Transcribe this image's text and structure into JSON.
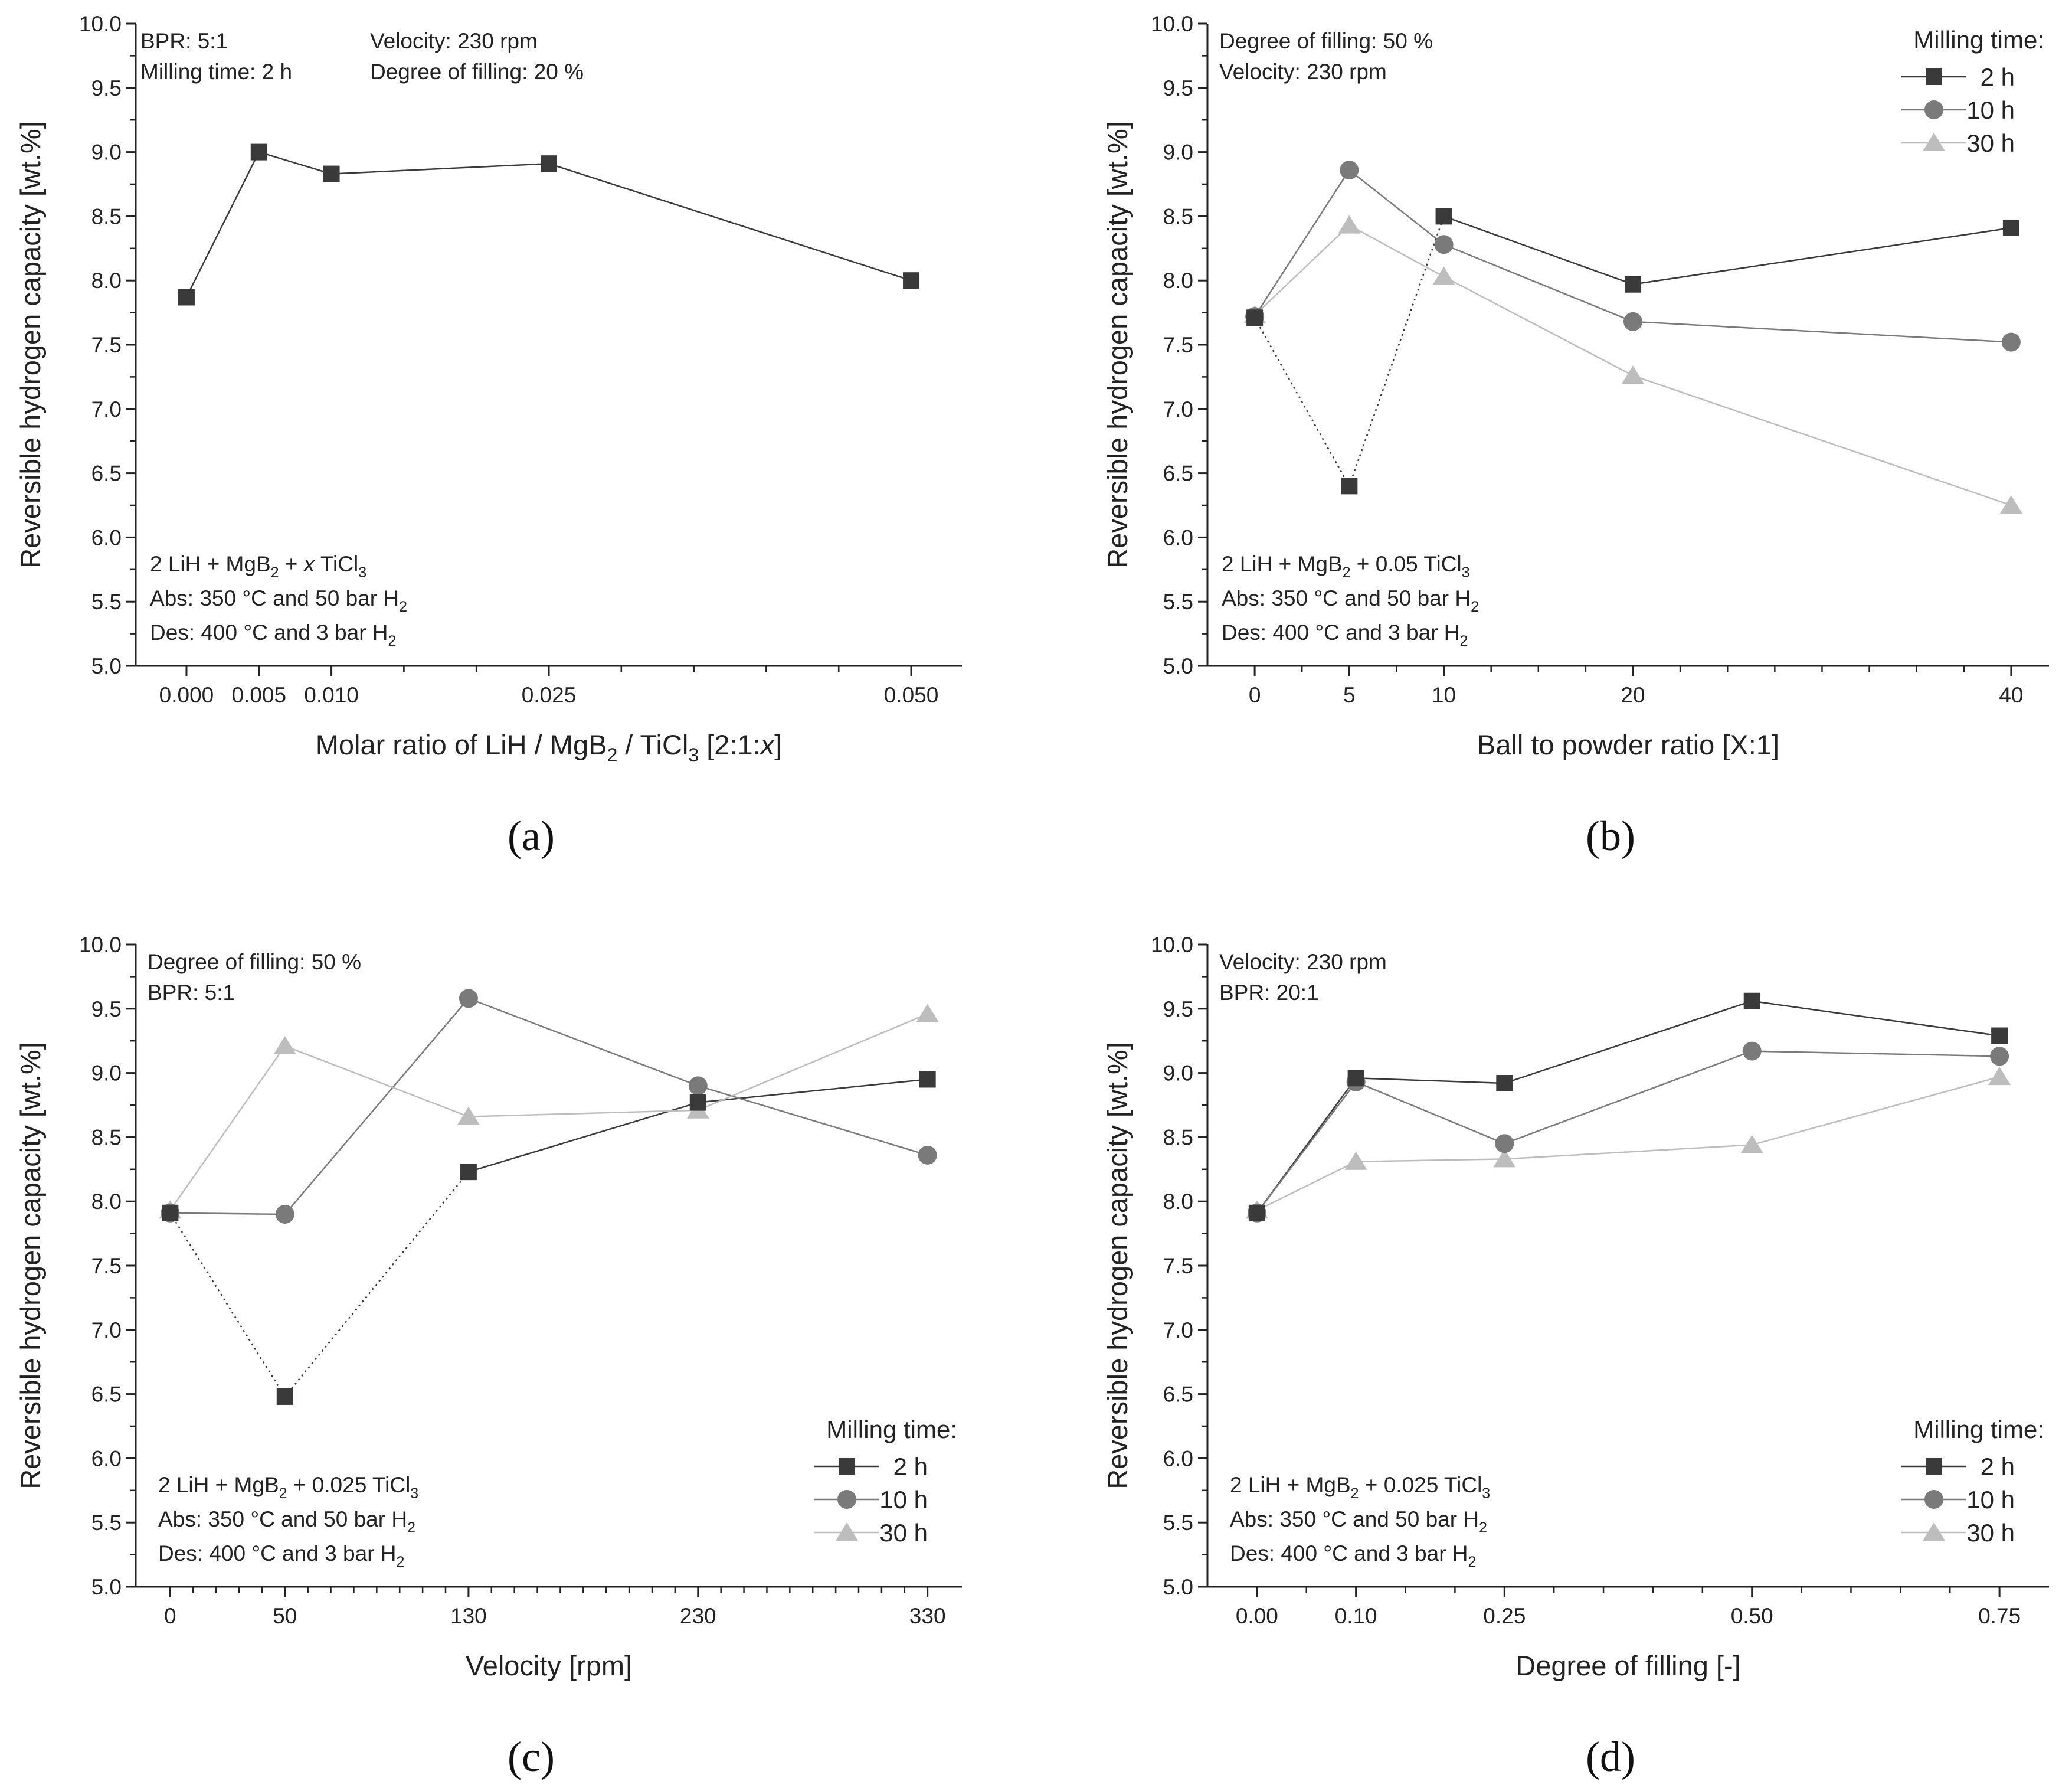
{
  "chart_data": [
    {
      "panel_label": "(a)",
      "type": "line",
      "xlabel_parts": [
        "Molar ratio of LiH / MgB",
        "2",
        " / TiCl",
        "3",
        " [2:1:",
        "x",
        "]"
      ],
      "ylabel": "Reversible hydrogen capacity [wt.%]",
      "xlim": [
        -0.0035,
        0.0535
      ],
      "ylim": [
        5.0,
        10.0
      ],
      "x_ticks": [
        0.0,
        0.005,
        0.01,
        0.025,
        0.05
      ],
      "x_tick_labels": [
        "0.000",
        "0.005",
        "0.010",
        "0.025",
        "0.050"
      ],
      "x_minor_ticks": [
        0.0,
        0.005,
        0.01,
        0.015,
        0.02,
        0.025,
        0.03,
        0.035,
        0.04,
        0.045,
        0.05
      ],
      "y_ticks": [
        5.0,
        5.5,
        6.0,
        6.5,
        7.0,
        7.5,
        8.0,
        8.5,
        9.0,
        9.5,
        10.0
      ],
      "y_tick_labels": [
        "5.0",
        "5.5",
        "6.0",
        "6.5",
        "7.0",
        "7.5",
        "8.0",
        "8.5",
        "9.0",
        "9.5",
        "10.0"
      ],
      "series": [
        {
          "name": "2 h",
          "marker": "square",
          "color": "#3a3a3a",
          "x": [
            0.0,
            0.005,
            0.01,
            0.025,
            0.05
          ],
          "values": [
            7.87,
            9.0,
            8.83,
            8.91,
            8.0
          ],
          "dotted_segments": []
        }
      ],
      "annotations_top": [
        [
          "BPR: 5:1"
        ],
        [
          "Milling time: 2 h"
        ],
        [
          "Velocity: 230 rpm"
        ],
        [
          "Degree of filling: 20 %"
        ]
      ],
      "annotations_bottom": [
        [
          "2 LiH + MgB",
          "2",
          " + ",
          "x",
          " TiCl",
          "3"
        ],
        [
          "Abs: 350 °C and 50 bar H",
          "2"
        ],
        [
          "Des: 400 °C and 3 bar H",
          "2"
        ]
      ],
      "legend": null
    },
    {
      "panel_label": "(b)",
      "type": "line",
      "xlabel_parts": [
        "Ball to powder ratio [X:1]"
      ],
      "ylabel": "Reversible hydrogen capacity [wt.%]",
      "xlim": [
        -2.5,
        42.0
      ],
      "ylim": [
        5.0,
        10.0
      ],
      "x_ticks": [
        0,
        5,
        10,
        20,
        40
      ],
      "x_tick_labels": [
        "0",
        "5",
        "10",
        "20",
        "40"
      ],
      "x_minor_ticks": [
        0,
        2.5,
        5,
        7.5,
        10,
        12.5,
        15,
        17.5,
        20,
        22.5,
        25,
        27.5,
        30,
        32.5,
        35,
        37.5,
        40
      ],
      "y_ticks": [
        5.0,
        5.5,
        6.0,
        6.5,
        7.0,
        7.5,
        8.0,
        8.5,
        9.0,
        9.5,
        10.0
      ],
      "y_tick_labels": [
        "5.0",
        "5.5",
        "6.0",
        "6.5",
        "7.0",
        "7.5",
        "8.0",
        "8.5",
        "9.0",
        "9.5",
        "10.0"
      ],
      "series": [
        {
          "name": "2 h",
          "marker": "square",
          "color": "#3a3a3a",
          "x": [
            0,
            5,
            10,
            20,
            40
          ],
          "values": [
            7.71,
            6.4,
            8.5,
            7.97,
            8.41
          ],
          "dotted_segments": [
            0,
            1
          ]
        },
        {
          "name": "10 h",
          "marker": "circle",
          "color": "#7a7a7a",
          "x": [
            0,
            5,
            10,
            20,
            40
          ],
          "values": [
            7.72,
            8.86,
            8.28,
            7.68,
            7.52
          ],
          "dotted_segments": []
        },
        {
          "name": "30 h",
          "marker": "triangle",
          "color": "#bdbdbd",
          "x": [
            0,
            5,
            10,
            20,
            40
          ],
          "values": [
            7.73,
            8.43,
            8.03,
            7.26,
            6.25
          ],
          "dotted_segments": []
        }
      ],
      "annotations_top": [
        [
          "Degree of filling: 50 %"
        ],
        [
          "Velocity: 230 rpm"
        ]
      ],
      "annotations_bottom": [
        [
          "2 LiH + MgB",
          "2",
          " + 0.05 TiCl",
          "3"
        ],
        [
          "Abs: 350 °C and 50 bar H",
          "2"
        ],
        [
          "Des: 400 °C and 3 bar H",
          "2"
        ]
      ],
      "legend": {
        "title": "Milling time:",
        "position": "top-right"
      }
    },
    {
      "panel_label": "(c)",
      "type": "line",
      "xlabel_parts": [
        "Velocity [rpm]"
      ],
      "ylabel": "Reversible hydrogen capacity [wt.%]",
      "xlim": [
        -15,
        345
      ],
      "ylim": [
        5.0,
        10.0
      ],
      "x_ticks": [
        0,
        50,
        130,
        230,
        330
      ],
      "x_tick_labels": [
        "0",
        "50",
        "130",
        "230",
        "330"
      ],
      "x_minor_ticks": [
        0,
        10,
        20,
        30,
        40,
        50,
        60,
        70,
        80,
        90,
        100,
        110,
        120,
        130,
        140,
        150,
        160,
        170,
        180,
        190,
        200,
        210,
        220,
        230,
        240,
        250,
        260,
        270,
        280,
        290,
        300,
        310,
        320,
        330
      ],
      "y_ticks": [
        5.0,
        5.5,
        6.0,
        6.5,
        7.0,
        7.5,
        8.0,
        8.5,
        9.0,
        9.5,
        10.0
      ],
      "y_tick_labels": [
        "5.0",
        "5.5",
        "6.0",
        "6.5",
        "7.0",
        "7.5",
        "8.0",
        "8.5",
        "9.0",
        "9.5",
        "10.0"
      ],
      "series": [
        {
          "name": "2 h",
          "marker": "square",
          "color": "#3a3a3a",
          "x": [
            0,
            50,
            130,
            230,
            330
          ],
          "values": [
            7.91,
            6.48,
            8.23,
            8.77,
            8.95
          ],
          "dotted_segments": [
            0,
            1
          ]
        },
        {
          "name": "10 h",
          "marker": "circle",
          "color": "#7a7a7a",
          "x": [
            0,
            50,
            130,
            230,
            330
          ],
          "values": [
            7.91,
            7.9,
            9.58,
            8.9,
            8.36
          ],
          "dotted_segments": []
        },
        {
          "name": "30 h",
          "marker": "triangle",
          "color": "#bdbdbd",
          "x": [
            0,
            50,
            130,
            230,
            330
          ],
          "values": [
            7.93,
            9.21,
            8.66,
            8.71,
            9.46
          ],
          "dotted_segments": []
        }
      ],
      "annotations_top": [
        [
          "Degree of filling: 50 %"
        ],
        [
          "BPR: 5:1"
        ]
      ],
      "annotations_bottom": [
        [
          "2 LiH + MgB",
          "2",
          " + 0.025 TiCl",
          "3"
        ],
        [
          "Abs: 350 °C and 50 bar H",
          "2"
        ],
        [
          "Des: 400 °C and 3 bar H",
          "2"
        ]
      ],
      "legend": {
        "title": "Milling time:",
        "position": "bottom-right"
      }
    },
    {
      "panel_label": "(d)",
      "type": "line",
      "xlabel_parts": [
        "Degree of filling [-]"
      ],
      "ylabel": "Reversible hydrogen capacity [wt.%]",
      "xlim": [
        -0.05,
        0.8
      ],
      "ylim": [
        5.0,
        10.0
      ],
      "x_ticks": [
        0.0,
        0.1,
        0.25,
        0.5,
        0.75
      ],
      "x_tick_labels": [
        "0.00",
        "0.10",
        "0.25",
        "0.50",
        "0.75"
      ],
      "x_minor_ticks": [
        0.0,
        0.05,
        0.1,
        0.15,
        0.2,
        0.25,
        0.3,
        0.35,
        0.4,
        0.45,
        0.5,
        0.55,
        0.6,
        0.65,
        0.7,
        0.75
      ],
      "y_ticks": [
        5.0,
        5.5,
        6.0,
        6.5,
        7.0,
        7.5,
        8.0,
        8.5,
        9.0,
        9.5,
        10.0
      ],
      "y_tick_labels": [
        "5.0",
        "5.5",
        "6.0",
        "6.5",
        "7.0",
        "7.5",
        "8.0",
        "8.5",
        "9.0",
        "9.5",
        "10.0"
      ],
      "series": [
        {
          "name": "2 h",
          "marker": "square",
          "color": "#3a3a3a",
          "x": [
            0.0,
            0.1,
            0.25,
            0.5,
            0.75
          ],
          "values": [
            7.91,
            8.96,
            8.92,
            9.56,
            9.29
          ],
          "dotted_segments": []
        },
        {
          "name": "10 h",
          "marker": "circle",
          "color": "#7a7a7a",
          "x": [
            0.0,
            0.1,
            0.25,
            0.5,
            0.75
          ],
          "values": [
            7.91,
            8.93,
            8.45,
            9.17,
            9.13
          ],
          "dotted_segments": []
        },
        {
          "name": "30 h",
          "marker": "triangle",
          "color": "#bdbdbd",
          "x": [
            0.0,
            0.1,
            0.25,
            0.5,
            0.75
          ],
          "values": [
            7.93,
            8.31,
            8.33,
            8.44,
            8.97
          ],
          "dotted_segments": []
        }
      ],
      "annotations_top": [
        [
          "Velocity: 230 rpm"
        ],
        [
          "BPR: 20:1"
        ]
      ],
      "annotations_bottom": [
        [
          "2 LiH + MgB",
          "2",
          " + 0.025 TiCl",
          "3"
        ],
        [
          "Abs: 350 °C and 50 bar H",
          "2"
        ],
        [
          "Des: 400 °C and 3 bar H",
          "2"
        ]
      ],
      "legend": {
        "title": "Milling time:",
        "position": "bottom-right"
      }
    }
  ]
}
